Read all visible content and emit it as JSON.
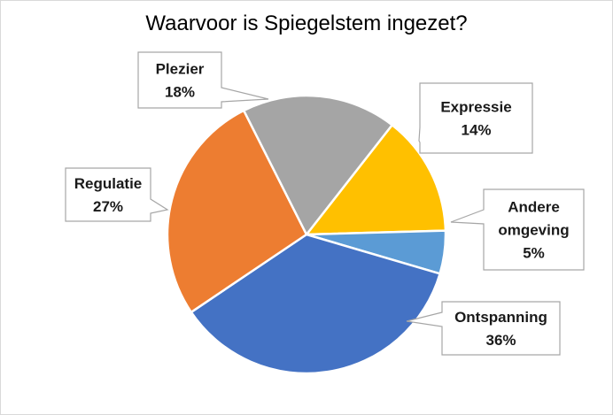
{
  "chart_data": {
    "type": "pie",
    "title": "Waarvoor is Spiegelstem ingezet?",
    "slices": [
      {
        "label": "Expressie",
        "value": 14,
        "value_label": "14%",
        "color": "#FFC000"
      },
      {
        "label": "Andere omgeving",
        "label_lines": [
          "Andere",
          "omgeving"
        ],
        "value": 5,
        "value_label": "5%",
        "color": "#5B9BD5"
      },
      {
        "label": "Ontspanning",
        "value": 36,
        "value_label": "36%",
        "color": "#4472C4"
      },
      {
        "label": "Regulatie",
        "value": 27,
        "value_label": "27%",
        "color": "#ED7D31"
      },
      {
        "label": "Plezier",
        "value": 18,
        "value_label": "18%",
        "color": "#A5A5A5"
      }
    ]
  }
}
